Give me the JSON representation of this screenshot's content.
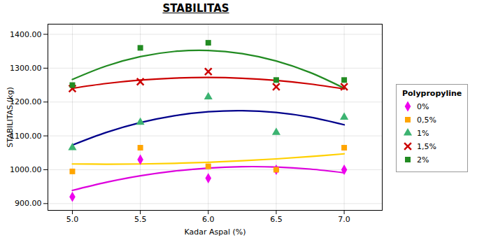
{
  "chart_data": {
    "type": "scatter",
    "title": "STABILITAS",
    "xlabel": "Kadar Aspal (%)",
    "ylabel": "STABILITAS (kg)",
    "x": [
      5.0,
      5.5,
      6.0,
      6.5,
      7.0
    ],
    "series": [
      {
        "name": "0%",
        "color": "#EE00EE",
        "marker": "diamond",
        "values": [
          920,
          1030,
          975,
          1000,
          1000
        ],
        "fit": {
          "color": "#DD00DD",
          "x": [
            5.0,
            5.25,
            5.5,
            5.75,
            6.0,
            6.25,
            6.5,
            6.75,
            7.0
          ],
          "values": [
            939,
            963,
            982,
            996,
            1005,
            1009,
            1008,
            1002,
            991
          ]
        }
      },
      {
        "name": "0,5%",
        "color": "#FFA500",
        "marker": "square",
        "values": [
          995,
          1065,
          1010,
          1000,
          1065
        ],
        "fit": {
          "color": "#FFD000",
          "x": [
            5.0,
            5.25,
            5.5,
            5.75,
            6.0,
            6.25,
            6.5,
            6.75,
            7.0
          ],
          "values": [
            1017,
            1016.38,
            1017,
            1018.88,
            1022,
            1026.38,
            1032,
            1038.88,
            1047
          ]
        }
      },
      {
        "name": "1%",
        "color": "#3CB371",
        "marker": "triangle",
        "values": [
          1065,
          1140,
          1215,
          1110,
          1155
        ],
        "fit": {
          "color": "#00008B",
          "x": [
            5.0,
            5.25,
            5.5,
            5.75,
            6.0,
            6.25,
            6.5,
            6.75,
            7.0
          ],
          "values": [
            1072.71,
            1110.21,
            1139.14,
            1159.5,
            1171.29,
            1174.5,
            1169.14,
            1155.21,
            1132.71
          ]
        }
      },
      {
        "name": "1,5%",
        "color": "#CC0000",
        "marker": "x",
        "values": [
          1240,
          1260,
          1290,
          1245,
          1245
        ],
        "fit": {
          "color": "#CC0000",
          "x": [
            5.0,
            5.25,
            5.5,
            5.75,
            6.0,
            6.25,
            6.5,
            6.75,
            7.0
          ],
          "values": [
            1240.57,
            1254.7,
            1264.71,
            1270.63,
            1272.43,
            1270.13,
            1263.71,
            1253.2,
            1238.57
          ]
        }
      },
      {
        "name": "2%",
        "color": "#228B22",
        "marker": "square",
        "values": [
          1250,
          1360,
          1375,
          1265,
          1265
        ],
        "fit": {
          "color": "#228B22",
          "x": [
            5.0,
            5.25,
            5.5,
            5.75,
            6.0,
            6.25,
            6.5,
            6.75,
            7.0
          ],
          "values": [
            1266.71,
            1306.59,
            1334.14,
            1349.38,
            1352.29,
            1342.88,
            1321.14,
            1287.09,
            1240.71
          ]
        }
      }
    ],
    "legend_title": "Polypropyline",
    "legend": "right",
    "xlim": [
      4.82,
      7.28
    ],
    "ylim": [
      880,
      1430
    ],
    "xticks": [
      {
        "value": 5.0,
        "label": "5.0"
      },
      5.5,
      {
        "value": 6.0,
        "label": "6.0"
      },
      6.5,
      {
        "value": 7.0,
        "label": "7.0"
      }
    ],
    "yticks": [
      {
        "value": 900,
        "label": "900.00"
      },
      {
        "value": 1000,
        "label": "1000.00"
      },
      {
        "value": 1100,
        "label": "1100.00"
      },
      {
        "value": 1200,
        "label": "1200.00"
      },
      {
        "value": 1300,
        "label": "1300.00"
      },
      {
        "value": 1400,
        "label": "1400.00"
      }
    ],
    "grid": true
  }
}
